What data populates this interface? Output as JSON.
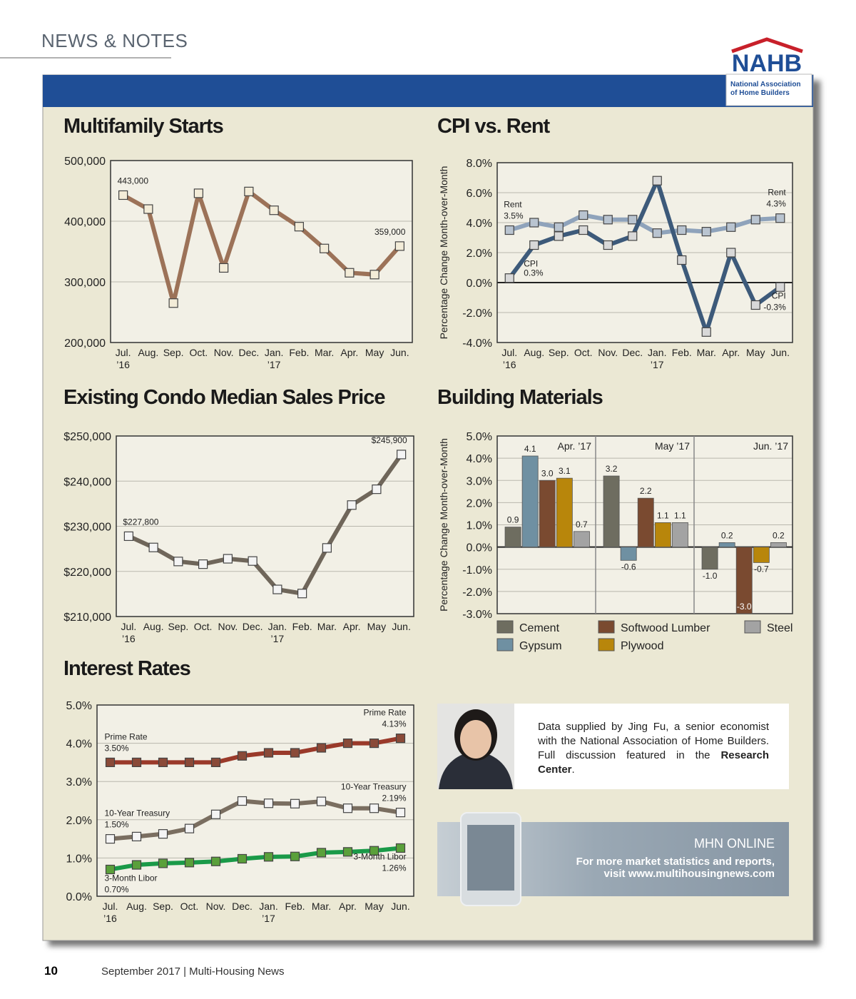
{
  "header": {
    "section": "NEWS & NOTES"
  },
  "logo": {
    "name": "NAHB",
    "subtitle": "National Association of Home Builders"
  },
  "chart_data": [
    {
      "type": "line",
      "title": "Multifamily Starts",
      "categories": [
        "Jul.\n’16",
        "Aug.",
        "Sep.",
        "Oct.",
        "Nov.",
        "Dec.",
        "Jan.\n’17",
        "Feb.",
        "Mar.",
        "Apr.",
        "May",
        "Jun."
      ],
      "series": [
        {
          "color": "#9c7258",
          "marker_color": "#f3ecd8",
          "values": [
            443000,
            420000,
            265000,
            446000,
            323000,
            449000,
            418000,
            391000,
            355000,
            315000,
            312000,
            359000
          ],
          "value_labels": [
            "443,000",
            null,
            null,
            null,
            null,
            null,
            null,
            null,
            null,
            null,
            null,
            "359,000"
          ]
        }
      ],
      "ylim": [
        200000,
        500000
      ],
      "yticks": [
        {
          "value": 200000,
          "label": "200,000"
        },
        {
          "value": 300000,
          "label": "300,000"
        },
        {
          "value": 400000,
          "label": "400,000"
        },
        {
          "value": 500000,
          "label": "500,000"
        }
      ],
      "grid": true
    },
    {
      "type": "line",
      "title": "CPI vs. Rent",
      "y_label": "Percentage Change Month-over-Month",
      "categories": [
        "Jul.\n’16",
        "Aug.",
        "Sep.",
        "Oct.",
        "Nov.",
        "Dec.",
        "Jan.\n’17",
        "Feb.",
        "Mar.",
        "Apr.",
        "May",
        "Jun."
      ],
      "series": [
        {
          "name": "Rent",
          "color": "#8fa3bb",
          "marker_color": "#b9c4d0",
          "values": [
            3.5,
            4.0,
            3.7,
            4.5,
            4.2,
            4.2,
            3.3,
            3.5,
            3.4,
            3.7,
            4.2,
            4.3
          ],
          "value_labels": [
            "3.5%",
            null,
            null,
            null,
            null,
            null,
            null,
            null,
            null,
            null,
            null,
            "4.3%"
          ]
        },
        {
          "name": "CPI",
          "color": "#3d5a7a",
          "marker_color": "#d8d8d8",
          "values": [
            0.3,
            2.5,
            3.1,
            3.5,
            2.5,
            3.1,
            6.8,
            1.5,
            -3.3,
            2.0,
            -1.5,
            -0.3
          ],
          "value_labels": [
            "0.3%",
            null,
            null,
            null,
            null,
            null,
            null,
            null,
            null,
            null,
            null,
            "-0.3%"
          ]
        }
      ],
      "ylim": [
        -4,
        8
      ],
      "yticks": [
        {
          "value": -4,
          "label": "-4.0%"
        },
        {
          "value": -2,
          "label": "-2.0%"
        },
        {
          "value": 0,
          "label": "0.0%"
        },
        {
          "value": 2,
          "label": "2.0%"
        },
        {
          "value": 4,
          "label": "4.0%"
        },
        {
          "value": 6,
          "label": "6.0%"
        },
        {
          "value": 8,
          "label": "8.0%"
        }
      ],
      "grid": true
    },
    {
      "type": "line",
      "title": "Existing Condo Median Sales Price",
      "categories": [
        "Jul.\n’16",
        "Aug.",
        "Sep.",
        "Oct.",
        "Nov.",
        "Dec.",
        "Jan.\n’17",
        "Feb.",
        "Mar.",
        "Apr.",
        "May",
        "Jun."
      ],
      "series": [
        {
          "color": "#6f665a",
          "marker_color": "#f4f4f4",
          "values": [
            227800,
            225300,
            222200,
            221600,
            222800,
            222300,
            216000,
            215100,
            225200,
            234700,
            238200,
            245900
          ],
          "value_labels": [
            "$227,800",
            null,
            null,
            null,
            null,
            null,
            null,
            null,
            null,
            null,
            null,
            "$245,900"
          ]
        }
      ],
      "ylim": [
        210000,
        250000
      ],
      "yticks": [
        {
          "value": 210000,
          "label": "$210,000"
        },
        {
          "value": 220000,
          "label": "$220,000"
        },
        {
          "value": 230000,
          "label": "$230,000"
        },
        {
          "value": 240000,
          "label": "$240,000"
        },
        {
          "value": 250000,
          "label": "$250,000"
        }
      ],
      "grid": true
    },
    {
      "type": "bar",
      "title": "Building Materials",
      "y_label": "Percentage Change Month-over-Month",
      "categories": [
        "Apr. ’17",
        "May ’17",
        "Jun. ’17"
      ],
      "series": [
        {
          "name": "Cement",
          "color": "#6e6d60",
          "values": [
            0.9,
            3.2,
            -1.0
          ],
          "value_labels": [
            "0.9",
            "3.2",
            "-1.0"
          ]
        },
        {
          "name": "Gypsum",
          "color": "#6f90a2",
          "values": [
            4.1,
            -0.6,
            0.2
          ],
          "value_labels": [
            "4.1",
            "-0.6",
            "0.2"
          ]
        },
        {
          "name": "Softwood Lumber",
          "color": "#7a4a30",
          "values": [
            3.0,
            2.2,
            -3.0
          ],
          "value_labels": [
            "3.0",
            "2.2",
            "-3.0"
          ]
        },
        {
          "name": "Plywood",
          "color": "#b8860b",
          "values": [
            3.1,
            1.1,
            -0.7
          ],
          "value_labels": [
            "3.1",
            "1.1",
            "-0.7"
          ]
        },
        {
          "name": "Steel",
          "color": "#a3a3a3",
          "values": [
            0.7,
            1.1,
            0.2
          ],
          "value_labels": [
            "0.7",
            "1.1",
            "0.2"
          ]
        }
      ],
      "ylim": [
        -3,
        5
      ],
      "yticks": [
        {
          "value": -3,
          "label": "-3.0%"
        },
        {
          "value": -2,
          "label": "-2.0%"
        },
        {
          "value": -1,
          "label": "-1.0%"
        },
        {
          "value": 0,
          "label": "0.0%"
        },
        {
          "value": 1,
          "label": "1.0%"
        },
        {
          "value": 2,
          "label": "2.0%"
        },
        {
          "value": 3,
          "label": "3.0%"
        },
        {
          "value": 4,
          "label": "4.0%"
        },
        {
          "value": 5,
          "label": "5.0%"
        }
      ],
      "grid": true
    },
    {
      "type": "line",
      "title": "Interest Rates",
      "categories": [
        "Jul.\n’16",
        "Aug.",
        "Sep.",
        "Oct.",
        "Nov.",
        "Dec.",
        "Jan.\n’17",
        "Feb.",
        "Mar.",
        "Apr.",
        "May",
        "Jun."
      ],
      "series": [
        {
          "name": "Prime Rate",
          "color": "#9a3a2a",
          "marker_color": "#8a4a38",
          "values": [
            3.5,
            3.5,
            3.5,
            3.5,
            3.5,
            3.67,
            3.75,
            3.75,
            3.88,
            4.0,
            4.0,
            4.13
          ],
          "value_labels": [
            "3.50%",
            null,
            null,
            null,
            null,
            null,
            null,
            null,
            null,
            null,
            null,
            "4.13%"
          ]
        },
        {
          "name": "10-Year Treasury",
          "color": "#7a6e60",
          "marker_color": "#f4f4f4",
          "values": [
            1.5,
            1.56,
            1.63,
            1.77,
            2.14,
            2.49,
            2.43,
            2.42,
            2.48,
            2.3,
            2.3,
            2.19
          ],
          "value_labels": [
            "1.50%",
            null,
            null,
            null,
            null,
            null,
            null,
            null,
            null,
            null,
            null,
            "2.19%"
          ]
        },
        {
          "name": "3-Month Libor",
          "color": "#1a9a48",
          "marker_color": "#5aa03a",
          "values": [
            0.7,
            0.82,
            0.86,
            0.88,
            0.91,
            0.98,
            1.03,
            1.04,
            1.14,
            1.16,
            1.19,
            1.26
          ],
          "value_labels": [
            "0.70%",
            null,
            null,
            null,
            null,
            null,
            null,
            null,
            null,
            null,
            null,
            "1.26%"
          ]
        }
      ],
      "ylim": [
        0,
        5
      ],
      "yticks": [
        {
          "value": 0,
          "label": "0.0%"
        },
        {
          "value": 1,
          "label": "1.0%"
        },
        {
          "value": 2,
          "label": "2.0%"
        },
        {
          "value": 3,
          "label": "3.0%"
        },
        {
          "value": 4,
          "label": "4.0%"
        },
        {
          "value": 5,
          "label": "5.0%"
        }
      ],
      "grid": true
    }
  ],
  "note": {
    "text": [
      "Data supplied by Jing Fu, a senior economist with the National Association of Home Builders. Full discussion featured in the ",
      "Research Center",
      "."
    ]
  },
  "promo": {
    "title": "MHN ONLINE",
    "text": "For more market statistics and reports, visit www.multihousingnews.com"
  },
  "footer": {
    "page": "10",
    "publication": "September 2017 | Multi-Housing News"
  }
}
